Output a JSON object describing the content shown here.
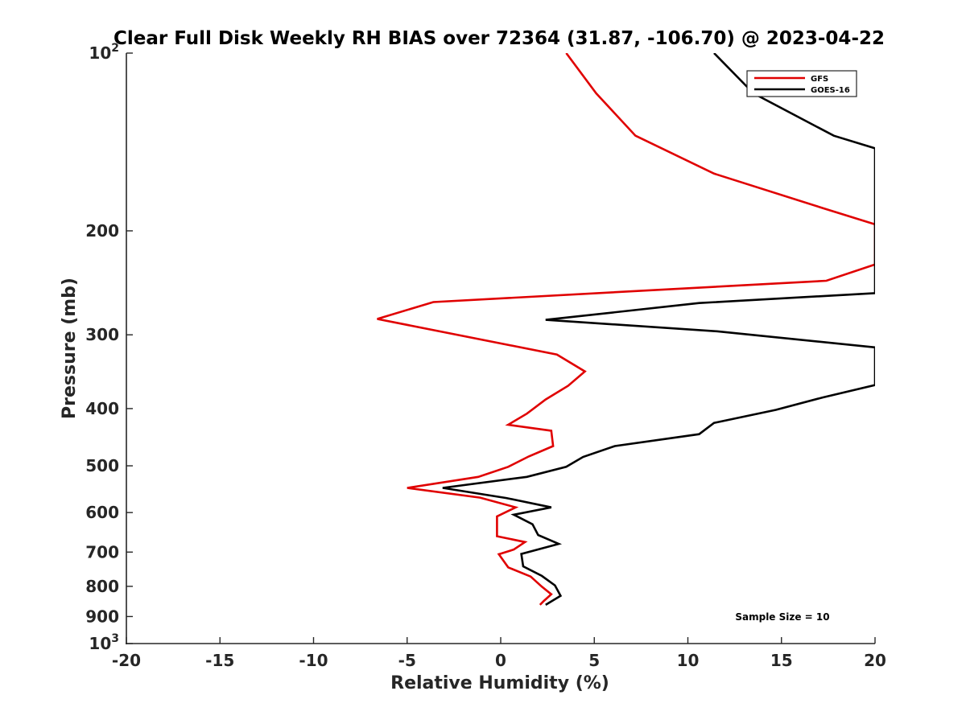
{
  "chart_data": {
    "type": "line",
    "title": "Clear Full Disk Weekly RH BIAS over 72364 (31.87, -106.70) @ 2023-04-22",
    "xlabel": "Relative Humidity (%)",
    "ylabel": "Pressure (mb)",
    "xlim": [
      -20,
      20
    ],
    "ylim": [
      100,
      1000
    ],
    "yscale": "log",
    "y_reversed": true,
    "grid": false,
    "legend_position": "top-right",
    "x_ticks": [
      {
        "value": -20,
        "label": "-20"
      },
      {
        "value": -15,
        "label": "-15"
      },
      {
        "value": -10,
        "label": "-10"
      },
      {
        "value": -5,
        "label": "-5"
      },
      {
        "value": 0,
        "label": "0"
      },
      {
        "value": 5,
        "label": "5"
      },
      {
        "value": 10,
        "label": "10"
      },
      {
        "value": 15,
        "label": "15"
      },
      {
        "value": 20,
        "label": "20"
      }
    ],
    "y_ticks": [
      {
        "value": 100,
        "base": "10",
        "exp": "2"
      },
      {
        "value": 200,
        "base": "200",
        "exp": ""
      },
      {
        "value": 300,
        "base": "300",
        "exp": ""
      },
      {
        "value": 400,
        "base": "400",
        "exp": ""
      },
      {
        "value": 500,
        "base": "500",
        "exp": ""
      },
      {
        "value": 600,
        "base": "600",
        "exp": ""
      },
      {
        "value": 700,
        "base": "700",
        "exp": ""
      },
      {
        "value": 800,
        "base": "800",
        "exp": ""
      },
      {
        "value": 900,
        "base": "900",
        "exp": ""
      },
      {
        "value": 1000,
        "base": "10",
        "exp": "3"
      }
    ],
    "series": [
      {
        "name": "GFS",
        "color": "#e00000",
        "points": [
          {
            "x": 3.5,
            "y": 100
          },
          {
            "x": 5.1,
            "y": 117
          },
          {
            "x": 7.2,
            "y": 138
          },
          {
            "x": 11.4,
            "y": 160
          },
          {
            "x": 17.2,
            "y": 183
          },
          {
            "x": 20.0,
            "y": 195
          },
          {
            "x": 20.0,
            "y": 228
          },
          {
            "x": 17.4,
            "y": 243
          },
          {
            "x": -3.6,
            "y": 264
          },
          {
            "x": -6.6,
            "y": 282
          },
          {
            "x": 3.0,
            "y": 324
          },
          {
            "x": 4.5,
            "y": 346
          },
          {
            "x": 3.6,
            "y": 366
          },
          {
            "x": 2.4,
            "y": 386
          },
          {
            "x": 1.4,
            "y": 408
          },
          {
            "x": 0.4,
            "y": 426
          },
          {
            "x": 2.7,
            "y": 436
          },
          {
            "x": 2.8,
            "y": 463
          },
          {
            "x": 1.5,
            "y": 482
          },
          {
            "x": 0.4,
            "y": 502
          },
          {
            "x": -1.2,
            "y": 522
          },
          {
            "x": -5.0,
            "y": 545
          },
          {
            "x": -1.1,
            "y": 566
          },
          {
            "x": 0.8,
            "y": 588
          },
          {
            "x": -0.2,
            "y": 609
          },
          {
            "x": -0.2,
            "y": 633
          },
          {
            "x": -0.2,
            "y": 658
          },
          {
            "x": 1.3,
            "y": 673
          },
          {
            "x": 0.7,
            "y": 693
          },
          {
            "x": -0.1,
            "y": 706
          },
          {
            "x": 0.4,
            "y": 743
          },
          {
            "x": 1.6,
            "y": 770
          },
          {
            "x": 2.2,
            "y": 801
          },
          {
            "x": 2.7,
            "y": 825
          },
          {
            "x": 2.3,
            "y": 847
          },
          {
            "x": 2.1,
            "y": 860
          }
        ]
      },
      {
        "name": "GOES-16",
        "color": "#000000",
        "points": [
          {
            "x": 11.4,
            "y": 100
          },
          {
            "x": 13.5,
            "y": 117
          },
          {
            "x": 17.8,
            "y": 138
          },
          {
            "x": 20.0,
            "y": 145
          },
          {
            "x": 20.0,
            "y": 255
          },
          {
            "x": 10.6,
            "y": 265
          },
          {
            "x": 2.4,
            "y": 283
          },
          {
            "x": 11.6,
            "y": 296
          },
          {
            "x": 20.0,
            "y": 315
          },
          {
            "x": 20.0,
            "y": 365
          },
          {
            "x": 17.2,
            "y": 383
          },
          {
            "x": 14.7,
            "y": 402
          },
          {
            "x": 11.4,
            "y": 423
          },
          {
            "x": 10.6,
            "y": 442
          },
          {
            "x": 6.1,
            "y": 463
          },
          {
            "x": 4.4,
            "y": 483
          },
          {
            "x": 3.5,
            "y": 502
          },
          {
            "x": 1.4,
            "y": 522
          },
          {
            "x": -3.1,
            "y": 545
          },
          {
            "x": 0.3,
            "y": 567
          },
          {
            "x": 2.7,
            "y": 588
          },
          {
            "x": 0.7,
            "y": 605
          },
          {
            "x": 1.7,
            "y": 628
          },
          {
            "x": 2.0,
            "y": 655
          },
          {
            "x": 3.1,
            "y": 678
          },
          {
            "x": 1.1,
            "y": 705
          },
          {
            "x": 1.2,
            "y": 740
          },
          {
            "x": 2.2,
            "y": 768
          },
          {
            "x": 2.9,
            "y": 797
          },
          {
            "x": 3.2,
            "y": 830
          },
          {
            "x": 2.4,
            "y": 860
          }
        ]
      }
    ],
    "annotations": [
      "Sample Size = 10"
    ]
  }
}
